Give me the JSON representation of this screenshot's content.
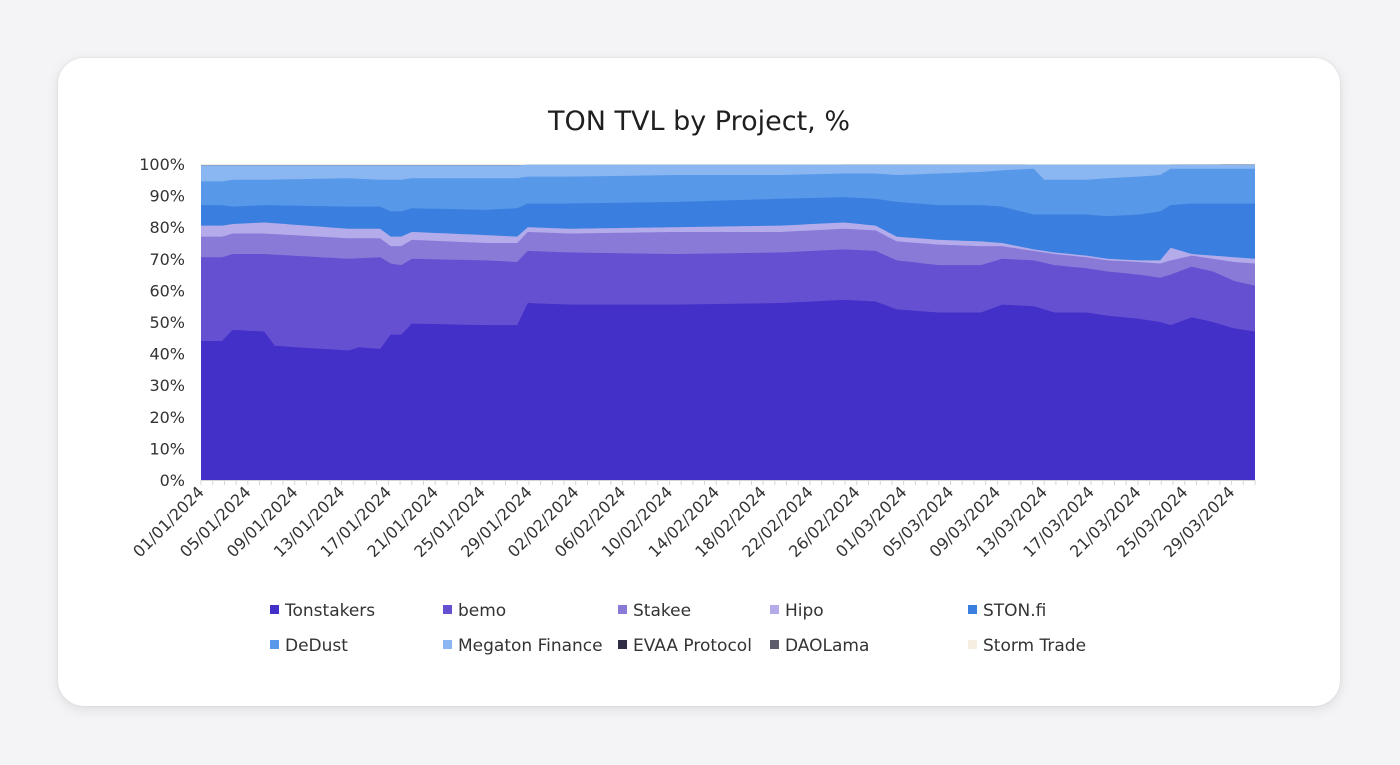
{
  "chart_data": {
    "type": "area",
    "stacked": true,
    "percent": true,
    "title": "TON TVL by Project, %",
    "xlabel": "",
    "ylabel": "",
    "ylim": [
      0,
      100
    ],
    "yticks": [
      "0%",
      "10%",
      "20%",
      "30%",
      "40%",
      "50%",
      "60%",
      "70%",
      "80%",
      "90%",
      "100%"
    ],
    "x_tick_labels": [
      "01/01/2024",
      "05/01/2024",
      "09/01/2024",
      "13/01/2024",
      "17/01/2024",
      "21/01/2024",
      "25/01/2024",
      "29/01/2024",
      "02/02/2024",
      "06/02/2024",
      "10/02/2024",
      "14/02/2024",
      "18/02/2024",
      "22/02/2024",
      "26/02/2024",
      "01/03/2024",
      "05/03/2024",
      "09/03/2024",
      "13/03/2024",
      "17/03/2024",
      "21/03/2024",
      "25/03/2024",
      "29/03/2024"
    ],
    "x_start": "01/01/2024",
    "x_end": "31/03/2024",
    "legend_position": "bottom",
    "grid": false,
    "series": [
      {
        "name": "Tonstakers",
        "color": "#4230c8",
        "points": [
          [
            0,
            44
          ],
          [
            2,
            44
          ],
          [
            3,
            47.5
          ],
          [
            6,
            47
          ],
          [
            7,
            42.5
          ],
          [
            9,
            42
          ],
          [
            14,
            41
          ],
          [
            15,
            42
          ],
          [
            17,
            41.5
          ],
          [
            18,
            46
          ],
          [
            19,
            46
          ],
          [
            20,
            49.5
          ],
          [
            27,
            49
          ],
          [
            30,
            49
          ],
          [
            31,
            56
          ],
          [
            35,
            55.5
          ],
          [
            45,
            55.5
          ],
          [
            55,
            56
          ],
          [
            61,
            57
          ],
          [
            64,
            56.5
          ],
          [
            66,
            54
          ],
          [
            70,
            53
          ],
          [
            74,
            53
          ],
          [
            76,
            55.5
          ],
          [
            79,
            55
          ],
          [
            81,
            53
          ],
          [
            84,
            53
          ],
          [
            86,
            52
          ],
          [
            89,
            51
          ],
          [
            91,
            50
          ],
          [
            92,
            49
          ],
          [
            94,
            51.5
          ],
          [
            96,
            50
          ],
          [
            98,
            48
          ],
          [
            100,
            47
          ]
        ]
      },
      {
        "name": "bemo",
        "color": "#6650d2",
        "points": [
          [
            0,
            70.5
          ],
          [
            2,
            70.5
          ],
          [
            3,
            71.5
          ],
          [
            6,
            71.5
          ],
          [
            14,
            70
          ],
          [
            17,
            70.5
          ],
          [
            18,
            68.5
          ],
          [
            19,
            68
          ],
          [
            20,
            70
          ],
          [
            27,
            69.5
          ],
          [
            30,
            69
          ],
          [
            31,
            72.5
          ],
          [
            35,
            72
          ],
          [
            45,
            71.5
          ],
          [
            55,
            72
          ],
          [
            61,
            73
          ],
          [
            64,
            72.5
          ],
          [
            66,
            69.5
          ],
          [
            70,
            68
          ],
          [
            74,
            68
          ],
          [
            76,
            70
          ],
          [
            79,
            69.5
          ],
          [
            81,
            68
          ],
          [
            84,
            67
          ],
          [
            86,
            66
          ],
          [
            89,
            65
          ],
          [
            91,
            64
          ],
          [
            92,
            65
          ],
          [
            94,
            67.5
          ],
          [
            96,
            66
          ],
          [
            98,
            63
          ],
          [
            100,
            61.5
          ]
        ]
      },
      {
        "name": "Stakee",
        "color": "#8a7ad8",
        "points": [
          [
            0,
            77
          ],
          [
            2,
            77
          ],
          [
            3,
            78
          ],
          [
            6,
            78
          ],
          [
            14,
            76.5
          ],
          [
            17,
            76.5
          ],
          [
            18,
            74
          ],
          [
            19,
            74
          ],
          [
            20,
            76
          ],
          [
            27,
            75
          ],
          [
            30,
            75
          ],
          [
            31,
            78.5
          ],
          [
            35,
            78
          ],
          [
            45,
            78.5
          ],
          [
            55,
            78.5
          ],
          [
            61,
            79.5
          ],
          [
            64,
            79
          ],
          [
            66,
            75.5
          ],
          [
            70,
            74.5
          ],
          [
            74,
            74
          ],
          [
            76,
            74
          ],
          [
            79,
            72.5
          ],
          [
            81,
            71.5
          ],
          [
            84,
            70.5
          ],
          [
            86,
            69.5
          ],
          [
            89,
            69
          ],
          [
            91,
            68.5
          ],
          [
            92,
            69.5
          ],
          [
            94,
            71
          ],
          [
            96,
            70
          ],
          [
            98,
            69
          ],
          [
            100,
            68.5
          ]
        ]
      },
      {
        "name": "Hipo",
        "color": "#b4acea",
        "points": [
          [
            0,
            80.5
          ],
          [
            2,
            80.5
          ],
          [
            3,
            81
          ],
          [
            6,
            81.5
          ],
          [
            14,
            79.5
          ],
          [
            17,
            79.5
          ],
          [
            18,
            77
          ],
          [
            19,
            77
          ],
          [
            20,
            78.5
          ],
          [
            27,
            77.5
          ],
          [
            30,
            77
          ],
          [
            31,
            80
          ],
          [
            35,
            79.5
          ],
          [
            45,
            80
          ],
          [
            55,
            80.5
          ],
          [
            61,
            81.5
          ],
          [
            64,
            80.5
          ],
          [
            66,
            77
          ],
          [
            70,
            76
          ],
          [
            74,
            75.5
          ],
          [
            76,
            75
          ],
          [
            79,
            73
          ],
          [
            81,
            72
          ],
          [
            84,
            71
          ],
          [
            86,
            70
          ],
          [
            89,
            69.5
          ],
          [
            91,
            69.5
          ],
          [
            92,
            73.5
          ],
          [
            94,
            71.5
          ],
          [
            96,
            71
          ],
          [
            98,
            70.5
          ],
          [
            100,
            70
          ]
        ]
      },
      {
        "name": "STON.fi",
        "color": "#3a7fe0",
        "points": [
          [
            0,
            87
          ],
          [
            2,
            87
          ],
          [
            3,
            86.5
          ],
          [
            6,
            87
          ],
          [
            14,
            86.5
          ],
          [
            17,
            86.5
          ],
          [
            18,
            85
          ],
          [
            19,
            85
          ],
          [
            20,
            86
          ],
          [
            27,
            85.5
          ],
          [
            30,
            86
          ],
          [
            31,
            87.5
          ],
          [
            35,
            87.5
          ],
          [
            45,
            88
          ],
          [
            55,
            89
          ],
          [
            61,
            89.5
          ],
          [
            64,
            89
          ],
          [
            66,
            88
          ],
          [
            70,
            87
          ],
          [
            74,
            87
          ],
          [
            76,
            86.5
          ],
          [
            79,
            84
          ],
          [
            81,
            84
          ],
          [
            84,
            84
          ],
          [
            86,
            83.5
          ],
          [
            89,
            84
          ],
          [
            91,
            85
          ],
          [
            92,
            87
          ],
          [
            94,
            87.5
          ],
          [
            96,
            87.5
          ],
          [
            98,
            87.5
          ],
          [
            100,
            87.5
          ]
        ]
      },
      {
        "name": "DeDust",
        "color": "#5898e8",
        "points": [
          [
            0,
            94.5
          ],
          [
            2,
            94.5
          ],
          [
            3,
            95
          ],
          [
            6,
            95
          ],
          [
            14,
            95.5
          ],
          [
            17,
            95
          ],
          [
            18,
            95
          ],
          [
            19,
            95
          ],
          [
            20,
            95.5
          ],
          [
            27,
            95.5
          ],
          [
            30,
            95.5
          ],
          [
            31,
            96
          ],
          [
            35,
            96
          ],
          [
            45,
            96.5
          ],
          [
            55,
            96.5
          ],
          [
            61,
            97
          ],
          [
            64,
            97
          ],
          [
            66,
            96.5
          ],
          [
            70,
            97
          ],
          [
            74,
            97.5
          ],
          [
            76,
            98
          ],
          [
            79,
            98.5
          ],
          [
            80,
            95
          ],
          [
            84,
            95
          ],
          [
            86,
            95.5
          ],
          [
            89,
            96
          ],
          [
            91,
            96.5
          ],
          [
            92,
            98.5
          ],
          [
            94,
            98.5
          ],
          [
            96,
            98.5
          ],
          [
            98,
            98.5
          ],
          [
            100,
            98.5
          ]
        ]
      },
      {
        "name": "Megaton Finance",
        "color": "#8ab7f2",
        "points": [
          [
            0,
            99.6
          ],
          [
            30,
            99.6
          ],
          [
            31,
            99.8
          ],
          [
            100,
            99.8
          ]
        ]
      },
      {
        "name": "EVAA Protocol",
        "color": "#2e2d45",
        "points": [
          [
            0,
            99.6
          ],
          [
            60,
            99.6
          ],
          [
            61,
            99.7
          ],
          [
            78,
            99.7
          ],
          [
            79,
            99.6
          ],
          [
            80,
            96.8
          ],
          [
            84,
            97
          ],
          [
            86,
            97
          ],
          [
            89,
            97.2
          ],
          [
            91,
            97.5
          ],
          [
            92,
            99.7
          ],
          [
            100,
            99.8
          ]
        ]
      },
      {
        "name": "DAOLama",
        "color": "#5c5c6a",
        "points": [
          [
            0,
            99.6
          ],
          [
            60,
            99.6
          ],
          [
            61,
            99.8
          ],
          [
            78,
            99.8
          ],
          [
            79,
            99.6
          ],
          [
            80,
            97.6
          ],
          [
            84,
            97.8
          ],
          [
            86,
            98
          ],
          [
            89,
            98.2
          ],
          [
            91,
            98.5
          ],
          [
            92,
            99.8
          ],
          [
            100,
            99.9
          ]
        ]
      },
      {
        "name": "Storm Trade",
        "color": "#f4efe0",
        "points": [
          [
            0,
            100
          ],
          [
            100,
            100
          ]
        ]
      }
    ]
  }
}
